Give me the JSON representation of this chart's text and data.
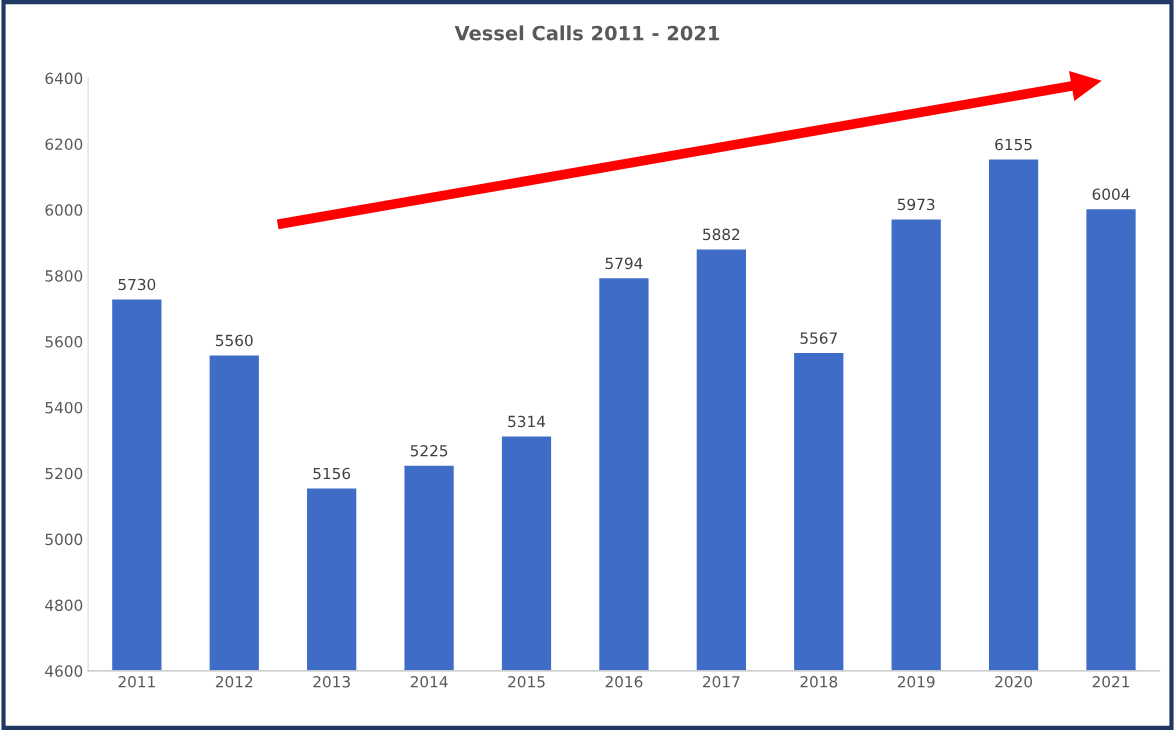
{
  "chart_data": {
    "type": "bar",
    "title": "Vessel Calls 2011 - 2021",
    "categories": [
      "2011",
      "2012",
      "2013",
      "2014",
      "2015",
      "2016",
      "2017",
      "2018",
      "2019",
      "2020",
      "2021"
    ],
    "values": [
      5730,
      5560,
      5156,
      5225,
      5314,
      5794,
      5882,
      5567,
      5973,
      6155,
      6004
    ],
    "color": "#3f6cc6",
    "ylim": [
      4600,
      6400
    ],
    "yticks": [
      4600,
      4800,
      5000,
      5200,
      5400,
      5600,
      5800,
      6000,
      6200,
      6400
    ],
    "data_labels": true,
    "grid": false
  }
}
